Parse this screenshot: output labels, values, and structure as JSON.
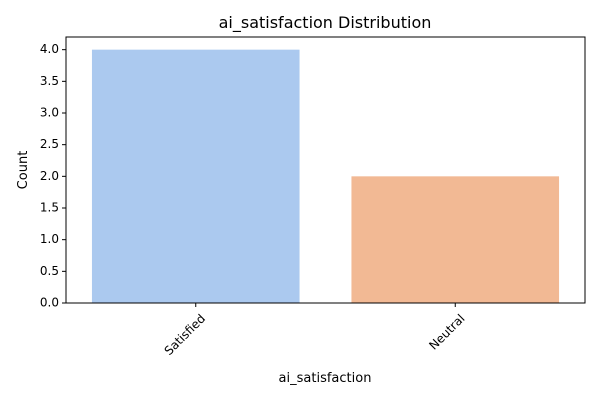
{
  "chart_data": {
    "type": "bar",
    "title": "ai_satisfaction Distribution",
    "xlabel": "ai_satisfaction",
    "ylabel": "Count",
    "categories": [
      "Satisfied",
      "Neutral"
    ],
    "values": [
      4,
      2
    ],
    "colors": [
      "#abc9ef",
      "#f2b994"
    ],
    "ylim": [
      0,
      4.2
    ],
    "yticks": [
      "0.0",
      "0.5",
      "1.0",
      "1.5",
      "2.0",
      "2.5",
      "3.0",
      "3.5",
      "4.0"
    ],
    "grid": false,
    "xtick_rotation": "45 degrees"
  }
}
